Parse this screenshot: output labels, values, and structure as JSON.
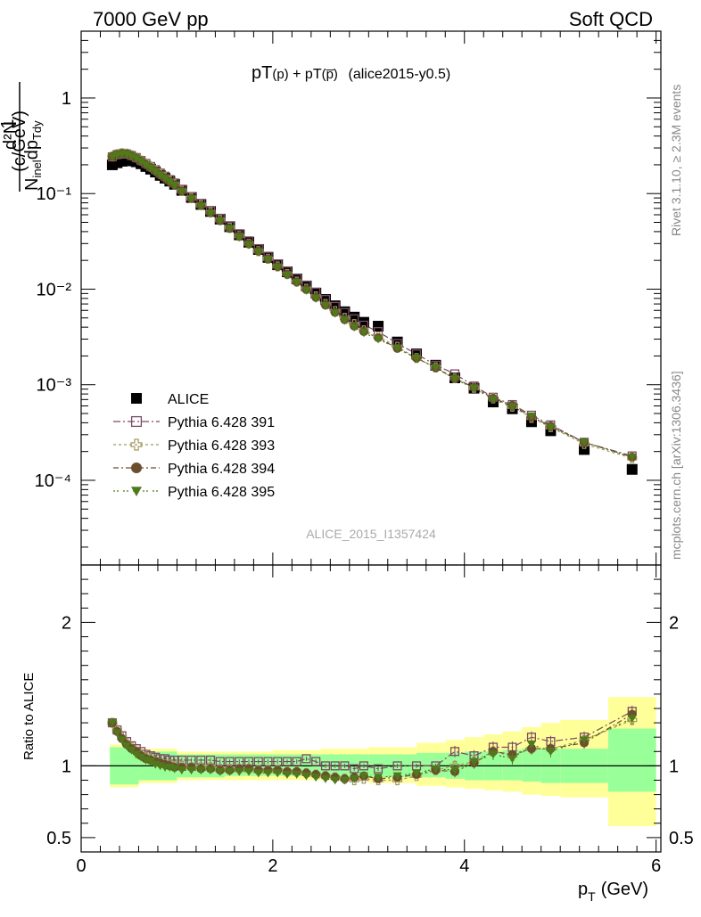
{
  "header": {
    "left": "7000 GeV pp",
    "right": "Soft QCD"
  },
  "plot_title": {
    "main1": "pT",
    "sub1": "(p)",
    "plus": " + pT",
    "sub2": "(p̅)",
    "tag": "(alice2015-y0.5)"
  },
  "side_text": {
    "rivet": "Rivet 3.1.10, ≥ 2.3M events",
    "mcplots": "mcplots.cern.ch [arXiv:1306.3436]"
  },
  "analysis_label": "ALICE_2015_I1357424",
  "y_label_main": {
    "num": "1",
    "den": "N",
    "den_sub": "inel",
    "dn": "d²N",
    "dp": "dp",
    "dp_sub": "Tdy",
    "unit": "(c/GeV)"
  },
  "y_label_ratio": "Ratio to ALICE",
  "x_label": {
    "p": "p",
    "sub": "T",
    "unit": "(GeV)"
  },
  "colors": {
    "data": "#000000",
    "p391": "#7b4a63",
    "p393": "#a59a5e",
    "p394": "#6b4e2e",
    "p395": "#4f7a1a",
    "band_inner": "#99ff99",
    "band_outer": "#ffff99"
  },
  "chart_data": [
    {
      "type": "scatter",
      "name": "main",
      "ylog": true,
      "xlim": [
        0,
        6.05
      ],
      "ylim": [
        1.3e-05,
        5
      ],
      "y_ticks": [
        "10⁻⁴",
        "10⁻³",
        "10⁻²",
        "10⁻¹",
        "1"
      ],
      "x_ticks": [
        "0",
        "2",
        "4",
        "6"
      ],
      "x": [
        0.325,
        0.375,
        0.425,
        0.475,
        0.525,
        0.575,
        0.625,
        0.675,
        0.725,
        0.775,
        0.825,
        0.875,
        0.925,
        0.975,
        1.05,
        1.15,
        1.25,
        1.35,
        1.45,
        1.55,
        1.65,
        1.75,
        1.85,
        1.95,
        2.05,
        2.15,
        2.25,
        2.35,
        2.45,
        2.55,
        2.65,
        2.75,
        2.85,
        2.95,
        3.1,
        3.3,
        3.5,
        3.7,
        3.9,
        4.1,
        4.3,
        4.5,
        4.7,
        4.9,
        5.25,
        5.75
      ],
      "series": [
        {
          "name": "ALICE",
          "values": [
            0.2,
            0.21,
            0.218,
            0.222,
            0.22,
            0.215,
            0.205,
            0.192,
            0.18,
            0.168,
            0.155,
            0.145,
            0.135,
            0.125,
            0.108,
            0.091,
            0.077,
            0.065,
            0.054,
            0.045,
            0.037,
            0.031,
            0.026,
            0.0215,
            0.018,
            0.0152,
            0.0128,
            0.0108,
            0.0091,
            0.0078,
            0.0067,
            0.0058,
            0.0051,
            0.0045,
            0.0041,
            0.0028,
            0.0021,
            0.0016,
            0.00118,
            0.00092,
            0.00066,
            0.00056,
            0.00041,
            0.00033,
            0.00021,
            0.00013
          ]
        },
        {
          "name": "Pythia 6.428 391",
          "values": [
            0.242,
            0.256,
            0.262,
            0.26,
            0.25,
            0.238,
            0.222,
            0.207,
            0.192,
            0.178,
            0.164,
            0.152,
            0.14,
            0.129,
            0.111,
            0.093,
            0.079,
            0.066,
            0.055,
            0.046,
            0.038,
            0.032,
            0.0265,
            0.0221,
            0.0184,
            0.0155,
            0.013,
            0.011,
            0.0093,
            0.0078,
            0.0066,
            0.0057,
            0.0049,
            0.0042,
            0.0036,
            0.0027,
            0.0021,
            0.0016,
            0.0013,
            0.00097,
            0.00074,
            0.00062,
            0.00048,
            0.00038,
            0.00025,
            0.00018
          ]
        },
        {
          "name": "Pythia 6.428 393",
          "values": [
            0.245,
            0.258,
            0.264,
            0.262,
            0.252,
            0.238,
            0.222,
            0.205,
            0.19,
            0.175,
            0.16,
            0.148,
            0.136,
            0.125,
            0.107,
            0.09,
            0.076,
            0.064,
            0.053,
            0.044,
            0.036,
            0.03,
            0.025,
            0.0208,
            0.0173,
            0.0144,
            0.012,
            0.0101,
            0.0084,
            0.007,
            0.0059,
            0.005,
            0.0043,
            0.0037,
            0.0032,
            0.0025,
            0.0019,
            0.00152,
            0.00117,
            0.00093,
            0.00072,
            0.00059,
            0.00045,
            0.00036,
            0.00024,
            0.00017
          ]
        },
        {
          "name": "Pythia 6.428 394",
          "values": [
            0.244,
            0.257,
            0.263,
            0.26,
            0.25,
            0.236,
            0.22,
            0.203,
            0.188,
            0.173,
            0.158,
            0.146,
            0.134,
            0.124,
            0.106,
            0.089,
            0.075,
            0.063,
            0.052,
            0.043,
            0.036,
            0.03,
            0.025,
            0.0208,
            0.0172,
            0.0143,
            0.0119,
            0.0099,
            0.0082,
            0.0068,
            0.0057,
            0.0048,
            0.0041,
            0.0036,
            0.0031,
            0.0024,
            0.0019,
            0.0015,
            0.00116,
            0.00094,
            0.00072,
            0.00061,
            0.00046,
            0.00037,
            0.00025,
            0.000175
          ]
        },
        {
          "name": "Pythia 6.428 395",
          "values": [
            0.242,
            0.255,
            0.26,
            0.257,
            0.247,
            0.233,
            0.217,
            0.2,
            0.185,
            0.17,
            0.156,
            0.144,
            0.132,
            0.122,
            0.105,
            0.088,
            0.074,
            0.062,
            0.052,
            0.043,
            0.035,
            0.029,
            0.0245,
            0.0204,
            0.0169,
            0.014,
            0.0117,
            0.0097,
            0.008,
            0.0067,
            0.0056,
            0.0047,
            0.004,
            0.0035,
            0.003,
            0.0024,
            0.0019,
            0.00151,
            0.00115,
            0.00092,
            0.0007,
            0.00059,
            0.00047,
            0.00036,
            0.00025,
            0.000175
          ]
        }
      ],
      "legend_position": "bottom-left"
    },
    {
      "type": "scatter",
      "name": "ratio",
      "ylim": [
        0.4,
        2.4
      ],
      "y_ticks": [
        "0.5",
        "1",
        "2"
      ],
      "x_ticks": [
        "0",
        "2",
        "4",
        "6"
      ],
      "reference_line": 1,
      "band_edges": [
        0.3,
        0.6,
        1.0,
        1.5,
        2.0,
        2.5,
        3.0,
        3.5,
        3.8,
        4.0,
        4.2,
        4.4,
        4.6,
        4.8,
        5.0,
        5.5,
        6.0
      ],
      "band_inner_lo": [
        0.87,
        0.9,
        0.92,
        0.93,
        0.93,
        0.93,
        0.92,
        0.92,
        0.91,
        0.9,
        0.9,
        0.9,
        0.89,
        0.88,
        0.88,
        0.82
      ],
      "band_inner_hi": [
        1.13,
        1.1,
        1.08,
        1.08,
        1.08,
        1.08,
        1.08,
        1.09,
        1.09,
        1.1,
        1.1,
        1.11,
        1.12,
        1.12,
        1.12,
        1.26
      ],
      "band_outer_lo": [
        0.85,
        0.88,
        0.9,
        0.9,
        0.9,
        0.9,
        0.88,
        0.86,
        0.85,
        0.84,
        0.83,
        0.82,
        0.8,
        0.79,
        0.78,
        0.58
      ],
      "band_outer_hi": [
        1.15,
        1.12,
        1.1,
        1.1,
        1.11,
        1.12,
        1.13,
        1.16,
        1.18,
        1.2,
        1.22,
        1.24,
        1.27,
        1.3,
        1.32,
        1.48
      ],
      "series": [
        {
          "name": "Pythia 6.428 391",
          "values": [
            1.3,
            1.25,
            1.21,
            1.17,
            1.14,
            1.12,
            1.1,
            1.08,
            1.07,
            1.06,
            1.05,
            1.05,
            1.04,
            1.04,
            1.04,
            1.04,
            1.04,
            1.04,
            1.03,
            1.03,
            1.03,
            1.03,
            1.03,
            1.03,
            1.03,
            1.03,
            1.03,
            1.05,
            1.03,
            1.0,
            1.0,
            1.0,
            0.98,
            1.0,
            0.98,
            1.0,
            1.0,
            1.0,
            1.1,
            1.07,
            1.13,
            1.13,
            1.2,
            1.17,
            1.2,
            1.38
          ]
        },
        {
          "name": "Pythia 6.428 393",
          "values": [
            1.3,
            1.25,
            1.2,
            1.16,
            1.13,
            1.1,
            1.08,
            1.06,
            1.05,
            1.03,
            1.02,
            1.01,
            1.01,
            1.0,
            1.0,
            0.99,
            0.99,
            0.99,
            0.98,
            0.98,
            0.98,
            0.98,
            0.97,
            0.97,
            0.97,
            0.96,
            0.96,
            0.95,
            0.94,
            0.93,
            0.92,
            0.91,
            0.9,
            0.91,
            0.9,
            0.9,
            0.93,
            0.97,
            1.0,
            1.03,
            1.1,
            1.07,
            1.12,
            1.12,
            1.18,
            1.32
          ]
        },
        {
          "name": "Pythia 6.428 394",
          "values": [
            1.3,
            1.24,
            1.19,
            1.15,
            1.12,
            1.1,
            1.07,
            1.05,
            1.04,
            1.03,
            1.02,
            1.01,
            1.0,
            0.99,
            0.99,
            0.99,
            0.98,
            0.98,
            0.97,
            0.97,
            0.98,
            0.98,
            0.97,
            0.97,
            0.97,
            0.96,
            0.96,
            0.95,
            0.94,
            0.93,
            0.92,
            0.91,
            0.92,
            0.93,
            0.91,
            0.92,
            0.94,
            0.97,
            0.96,
            1.02,
            1.1,
            1.08,
            1.12,
            1.12,
            1.16,
            1.36
          ]
        },
        {
          "name": "Pythia 6.428 395",
          "values": [
            1.3,
            1.23,
            1.18,
            1.14,
            1.11,
            1.08,
            1.06,
            1.04,
            1.03,
            1.01,
            1.0,
            0.99,
            0.99,
            0.98,
            0.97,
            0.97,
            0.97,
            0.97,
            0.96,
            0.96,
            0.96,
            0.96,
            0.95,
            0.95,
            0.95,
            0.94,
            0.94,
            0.93,
            0.92,
            0.91,
            0.9,
            0.9,
            0.91,
            0.93,
            0.92,
            0.93,
            0.95,
            0.98,
            0.97,
            1.03,
            1.08,
            1.05,
            1.15,
            1.1,
            1.18,
            1.33
          ]
        }
      ]
    }
  ]
}
